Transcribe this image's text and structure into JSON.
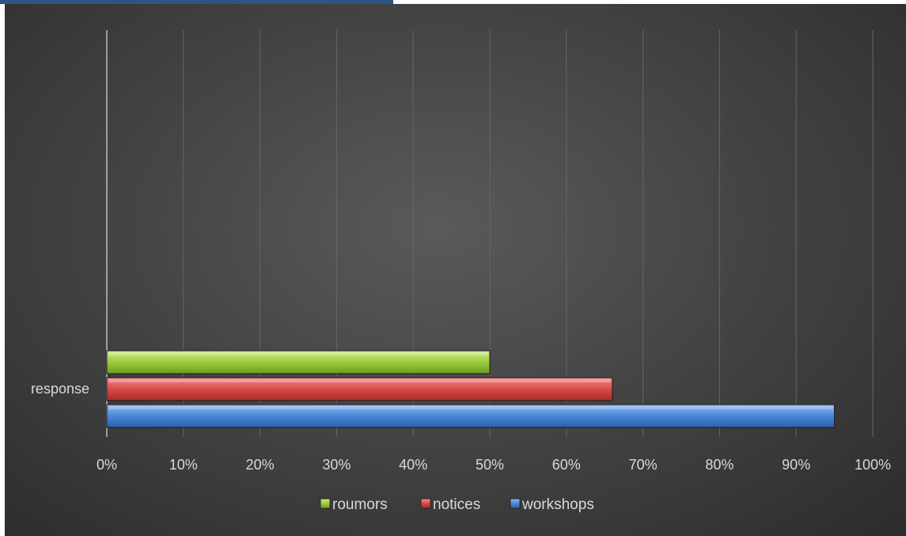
{
  "chart_data": {
    "type": "bar",
    "orientation": "horizontal",
    "categories": [
      "response"
    ],
    "series": [
      {
        "name": "workshops",
        "values": [
          95
        ],
        "color": "#4a86d8"
      },
      {
        "name": "notices",
        "values": [
          66
        ],
        "color": "#d94949"
      },
      {
        "name": "roumors",
        "values": [
          50
        ],
        "color": "#9ccc3c"
      }
    ],
    "x_ticks": [
      "0%",
      "10%",
      "20%",
      "30%",
      "40%",
      "50%",
      "60%",
      "70%",
      "80%",
      "90%",
      "100%"
    ],
    "xlim": [
      0,
      100
    ],
    "grid": true,
    "legend": {
      "placement": "bottom",
      "order": [
        "roumors",
        "notices",
        "workshops"
      ]
    },
    "title": "",
    "xlabel": "",
    "ylabel": ""
  }
}
